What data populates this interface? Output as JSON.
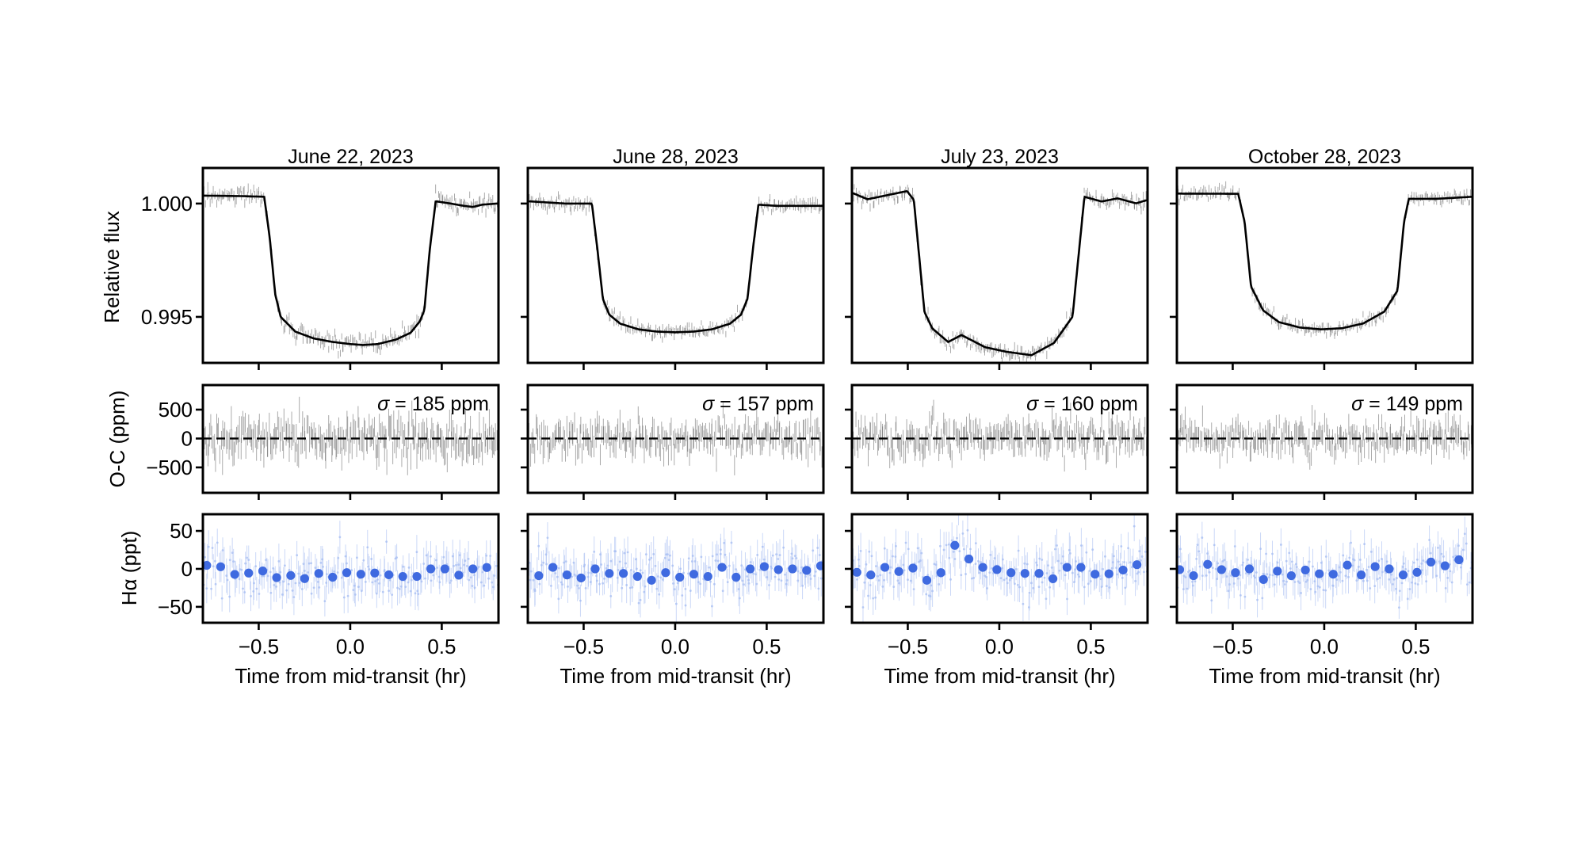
{
  "chart_data": {
    "type": "line",
    "grid": false,
    "xlabel": "Time from mid-transit (hr)",
    "xlim": [
      -0.805,
      0.81
    ],
    "xticks": [
      -0.5,
      0.0,
      0.5
    ],
    "xtick_labels": [
      "−0.5",
      "0.0",
      "0.5"
    ],
    "rows": [
      {
        "ylabel": "Relative flux",
        "ylim": [
          0.99297,
          1.00157
        ],
        "yticks": [
          0.995,
          1.0
        ],
        "ytick_labels": [
          "0.995",
          "1.000"
        ]
      },
      {
        "ylabel": "O-C (ppm)",
        "ylim": [
          -940,
          925
        ],
        "yticks": [
          -500,
          0,
          500
        ],
        "ytick_labels": [
          "−500",
          "0",
          "500"
        ]
      },
      {
        "ylabel": "Hα (ppt)",
        "ylim": [
          -71,
          72
        ],
        "yticks": [
          -50,
          0,
          50
        ],
        "ytick_labels": [
          "−50",
          "0",
          "50"
        ]
      }
    ],
    "colors": {
      "model": "#000000",
      "raw_points": "#555555",
      "halpha_raw": "#a9bff2",
      "halpha_binned": "#3f6ae0"
    },
    "panels": [
      {
        "title": "June 22, 2023",
        "sigma_label": "σ = 185 ppm",
        "residual_rms_ppm": 185,
        "model": {
          "x": [
            -0.8,
            -0.6,
            -0.47,
            -0.44,
            -0.41,
            -0.38,
            -0.3,
            -0.2,
            -0.1,
            0.0,
            0.07,
            0.15,
            0.25,
            0.33,
            0.38,
            0.405,
            0.435,
            0.467,
            0.55,
            0.62,
            0.67,
            0.72,
            0.8
          ],
          "y": [
            1.00035,
            1.00033,
            1.0003,
            0.9985,
            0.996,
            0.995,
            0.99435,
            0.99405,
            0.9939,
            0.9938,
            0.99376,
            0.9938,
            0.994,
            0.9943,
            0.9948,
            0.9953,
            0.998,
            1.0001,
            1.0,
            0.9999,
            0.99985,
            0.99995,
            1.0
          ]
        },
        "halpha_binned": {
          "x": [
            -0.784,
            -0.708,
            -0.631,
            -0.555,
            -0.478,
            -0.402,
            -0.325,
            -0.249,
            -0.172,
            -0.096,
            -0.019,
            0.058,
            0.134,
            0.211,
            0.287,
            0.364,
            0.44,
            0.517,
            0.593,
            0.67,
            0.746
          ],
          "y": [
            4.6,
            2.8,
            -7.3,
            -5.5,
            -2.8,
            -11.5,
            -8.7,
            -12.8,
            -6,
            -11,
            -5,
            -7,
            -5.5,
            -7.8,
            -10,
            -10,
            0,
            0,
            -8.3,
            0,
            1.8
          ]
        }
      },
      {
        "title": "June 28, 2023",
        "sigma_label": "σ = 157 ppm",
        "residual_rms_ppm": 157,
        "model": {
          "x": [
            -0.8,
            -0.6,
            -0.455,
            -0.425,
            -0.395,
            -0.36,
            -0.3,
            -0.2,
            -0.1,
            0.0,
            0.1,
            0.2,
            0.3,
            0.36,
            0.395,
            0.425,
            0.455,
            0.55,
            0.65,
            0.8
          ],
          "y": [
            1.0001,
            1.0,
            1.0,
            0.998,
            0.9958,
            0.9951,
            0.9947,
            0.99445,
            0.99435,
            0.99432,
            0.99435,
            0.99445,
            0.9947,
            0.9951,
            0.9958,
            0.998,
            0.99995,
            0.9999,
            0.9999,
            0.9999
          ]
        },
        "halpha_binned": {
          "x": [
            -0.745,
            -0.668,
            -0.591,
            -0.514,
            -0.437,
            -0.36,
            -0.283,
            -0.206,
            -0.129,
            -0.052,
            0.025,
            0.102,
            0.179,
            0.256,
            0.333,
            0.41,
            0.487,
            0.564,
            0.641,
            0.718,
            0.795
          ],
          "y": [
            -9,
            2,
            -8,
            -12,
            0,
            -6,
            -6,
            -10,
            -15,
            -5,
            -11,
            -7,
            -10,
            2,
            -11,
            0,
            3,
            -1,
            0,
            -2,
            4
          ]
        }
      },
      {
        "title": "July 23, 2023",
        "sigma_label": "σ = 160 ppm",
        "residual_rms_ppm": 160,
        "model": {
          "x": [
            -0.806,
            -0.72,
            -0.504,
            -0.467,
            -0.409,
            -0.366,
            -0.279,
            -0.207,
            -0.077,
            0.039,
            0.176,
            0.299,
            0.4,
            0.465,
            0.559,
            0.646,
            0.747,
            0.81
          ],
          "y": [
            1.00048,
            1.00019,
            1.00055,
            1.00016,
            0.99522,
            0.99449,
            0.99389,
            0.9942,
            0.99366,
            0.99346,
            0.99331,
            0.99385,
            0.99501,
            1.0003,
            1.00009,
            1.00023,
            1.00001,
            1.00016
          ]
        },
        "halpha_binned": {
          "x": [
            -0.778,
            -0.702,
            -0.625,
            -0.549,
            -0.472,
            -0.396,
            -0.319,
            -0.243,
            -0.166,
            -0.09,
            -0.013,
            0.064,
            0.14,
            0.217,
            0.293,
            0.37,
            0.446,
            0.523,
            0.599,
            0.676,
            0.752
          ],
          "y": [
            -4.5,
            -8,
            2,
            -3.5,
            1,
            -15,
            -5,
            31,
            13,
            2,
            -1,
            -5,
            -6,
            -6,
            -13,
            2,
            2,
            -7,
            -6.5,
            -1.5,
            5.5
          ]
        }
      },
      {
        "title": "October 28, 2023",
        "sigma_label": "σ = 149 ppm",
        "residual_rms_ppm": 149,
        "model": {
          "x": [
            -0.805,
            -0.47,
            -0.435,
            -0.4,
            -0.334,
            -0.248,
            -0.133,
            -0.017,
            0.098,
            0.213,
            0.328,
            0.4,
            0.436,
            0.462,
            0.616,
            0.81
          ],
          "y": [
            1.00044,
            1.00043,
            0.99919,
            0.99634,
            0.99529,
            0.99477,
            0.99453,
            0.99445,
            0.9945,
            0.99471,
            0.99523,
            0.99616,
            0.99919,
            1.00021,
            1.00021,
            1.0003
          ]
        },
        "halpha_binned": {
          "x": [
            -0.79,
            -0.714,
            -0.637,
            -0.561,
            -0.485,
            -0.409,
            -0.332,
            -0.256,
            -0.18,
            -0.103,
            -0.027,
            0.049,
            0.126,
            0.202,
            0.278,
            0.355,
            0.431,
            0.507,
            0.583,
            0.66,
            0.736
          ],
          "y": [
            -1,
            -9,
            6,
            -1,
            -5,
            0,
            -14,
            -3,
            -9,
            -1.5,
            -6.5,
            -7,
            5,
            -8,
            3,
            0,
            -8,
            -4.5,
            9,
            4,
            12
          ]
        }
      }
    ]
  }
}
